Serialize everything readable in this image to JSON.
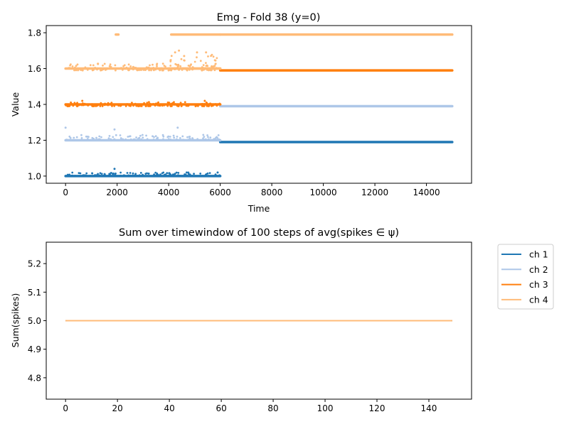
{
  "chart_data": [
    {
      "type": "scatter",
      "title": "Emg - Fold 38 (y=0)",
      "xlabel": "Time",
      "ylabel": "Value",
      "xlim": [
        -750,
        15750
      ],
      "ylim": [
        0.96,
        1.84
      ],
      "xticks": [
        0,
        2000,
        4000,
        6000,
        8000,
        10000,
        12000,
        14000
      ],
      "xtick_labels": [
        "0",
        "2000",
        "4000",
        "6000",
        "8000",
        "10000",
        "12000",
        "14000"
      ],
      "yticks": [
        1.0,
        1.2,
        1.4,
        1.6,
        1.8
      ],
      "ytick_labels": [
        "1.0",
        "1.2",
        "1.4",
        "1.6",
        "1.8"
      ],
      "grid": false,
      "series": [
        {
          "color": "#1f77b4",
          "segments": [
            {
              "x": [
                0,
                6000
              ],
              "y": 1.0,
              "noise": [
                0.0,
                0.02
              ]
            },
            {
              "x": [
                6000,
                15000
              ],
              "y": 1.19
            }
          ],
          "outliers": [
            [
              1900,
              1.04
            ],
            [
              4700,
              1.02
            ],
            [
              5900,
              1.02
            ]
          ]
        },
        {
          "color": "#aec7e8",
          "segments": [
            {
              "x": [
                0,
                6000
              ],
              "y": 1.2,
              "noise": [
                0.0,
                0.03
              ]
            },
            {
              "x": [
                6000,
                15000
              ],
              "y": 1.39
            }
          ],
          "outliers": [
            [
              0,
              1.27
            ],
            [
              4350,
              1.27
            ],
            [
              1900,
              1.26
            ]
          ]
        },
        {
          "color": "#ff7f0e",
          "segments": [
            {
              "x": [
                0,
                6000
              ],
              "y": 1.4,
              "noise": [
                -0.01,
                0.015
              ]
            },
            {
              "x": [
                6000,
                15000
              ],
              "y": 1.59
            }
          ],
          "outliers": [
            [
              650,
              1.42
            ],
            [
              5400,
              1.42
            ]
          ]
        },
        {
          "color": "#ffbb78",
          "segments": [
            {
              "x": [
                0,
                6000
              ],
              "y": 1.6,
              "noise": [
                -0.01,
                0.03
              ]
            },
            {
              "x": [
                4000,
                6000
              ],
              "y": 1.6,
              "noise": [
                0.0,
                0.08
              ]
            },
            {
              "x": [
                1950,
                2050
              ],
              "y": 1.79
            },
            {
              "x": [
                4100,
                6000
              ],
              "y": 1.79
            },
            {
              "x": [
                6000,
                15000
              ],
              "y": 1.79
            }
          ],
          "outliers": [
            [
              4250,
              1.69
            ],
            [
              4400,
              1.7
            ],
            [
              5100,
              1.69
            ],
            [
              5450,
              1.69
            ],
            [
              4600,
              1.67
            ]
          ]
        }
      ]
    },
    {
      "type": "line",
      "title": "Sum over timewindow of 100 steps of avg(spikes ∈ ψ)",
      "xlabel": "",
      "ylabel": "Sum(spikes)",
      "xlim": [
        -7.45,
        156.45
      ],
      "ylim": [
        4.725,
        5.275
      ],
      "xticks": [
        0,
        20,
        40,
        60,
        80,
        100,
        120,
        140
      ],
      "xtick_labels": [
        "0",
        "20",
        "40",
        "60",
        "80",
        "100",
        "120",
        "140"
      ],
      "yticks": [
        4.8,
        4.9,
        5.0,
        5.1,
        5.2
      ],
      "ytick_labels": [
        "4.8",
        "4.9",
        "5.0",
        "5.1",
        "5.2"
      ],
      "grid": false,
      "legend_position": "outside-right",
      "series": [
        {
          "name": "ch 1",
          "color": "#1f77b4",
          "x": [
            0,
            149
          ],
          "y": [
            5.0,
            5.0
          ]
        },
        {
          "name": "ch 2",
          "color": "#aec7e8",
          "x": [
            0,
            149
          ],
          "y": [
            5.0,
            5.0
          ]
        },
        {
          "name": "ch 3",
          "color": "#ff7f0e",
          "x": [
            0,
            149
          ],
          "y": [
            5.0,
            5.0
          ]
        },
        {
          "name": "ch 4",
          "color": "#ffbb78",
          "x": [
            0,
            149
          ],
          "y": [
            5.0,
            5.0
          ]
        }
      ]
    }
  ]
}
